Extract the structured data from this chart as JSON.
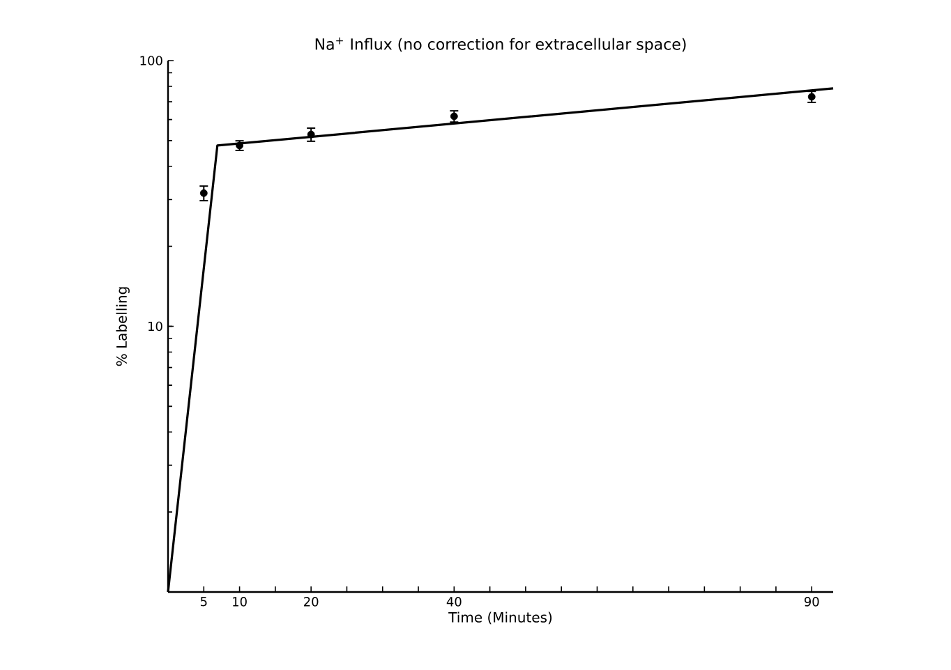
{
  "chart_data": {
    "type": "scatter",
    "title": "Na$^{+}$ Influx (no correction for extracellular space)",
    "xlabel": "Time (Minutes)",
    "ylabel": "% Labelling",
    "log": "y",
    "grid": false,
    "xlim": [
      0,
      93
    ],
    "ylim": [
      1,
      100
    ],
    "xticks": [
      5,
      10,
      {
        "value": 15,
        "label": null
      },
      20,
      {
        "value": 25,
        "label": null
      },
      {
        "value": 30,
        "label": null
      },
      {
        "value": 35,
        "label": null
      },
      40,
      {
        "value": 45,
        "label": null
      },
      {
        "value": 50,
        "label": null
      },
      {
        "value": 55,
        "label": null
      },
      {
        "value": 60,
        "label": null
      },
      {
        "value": 65,
        "label": null
      },
      {
        "value": 70,
        "label": null
      },
      {
        "value": 75,
        "label": null
      },
      {
        "value": 80,
        "label": null
      },
      {
        "value": 85,
        "label": null
      },
      90
    ],
    "yticks": [
      {
        "value": 1,
        "label": null
      },
      10,
      100
    ],
    "series": [
      {
        "marker": "circle",
        "color": "#000000",
        "x": [
          5,
          10,
          20,
          40,
          90
        ],
        "values": [
          31.7,
          47.9,
          52.7,
          61.7,
          73.1
        ],
        "errors": [
          2,
          2,
          3,
          3,
          3.5
        ]
      },
      {
        "type": "line",
        "marker": "none",
        "line_style": "solid",
        "color": "#000000",
        "x": [
          0,
          6.9,
          93
        ],
        "values": [
          1,
          47.9,
          78.6
        ]
      }
    ]
  }
}
